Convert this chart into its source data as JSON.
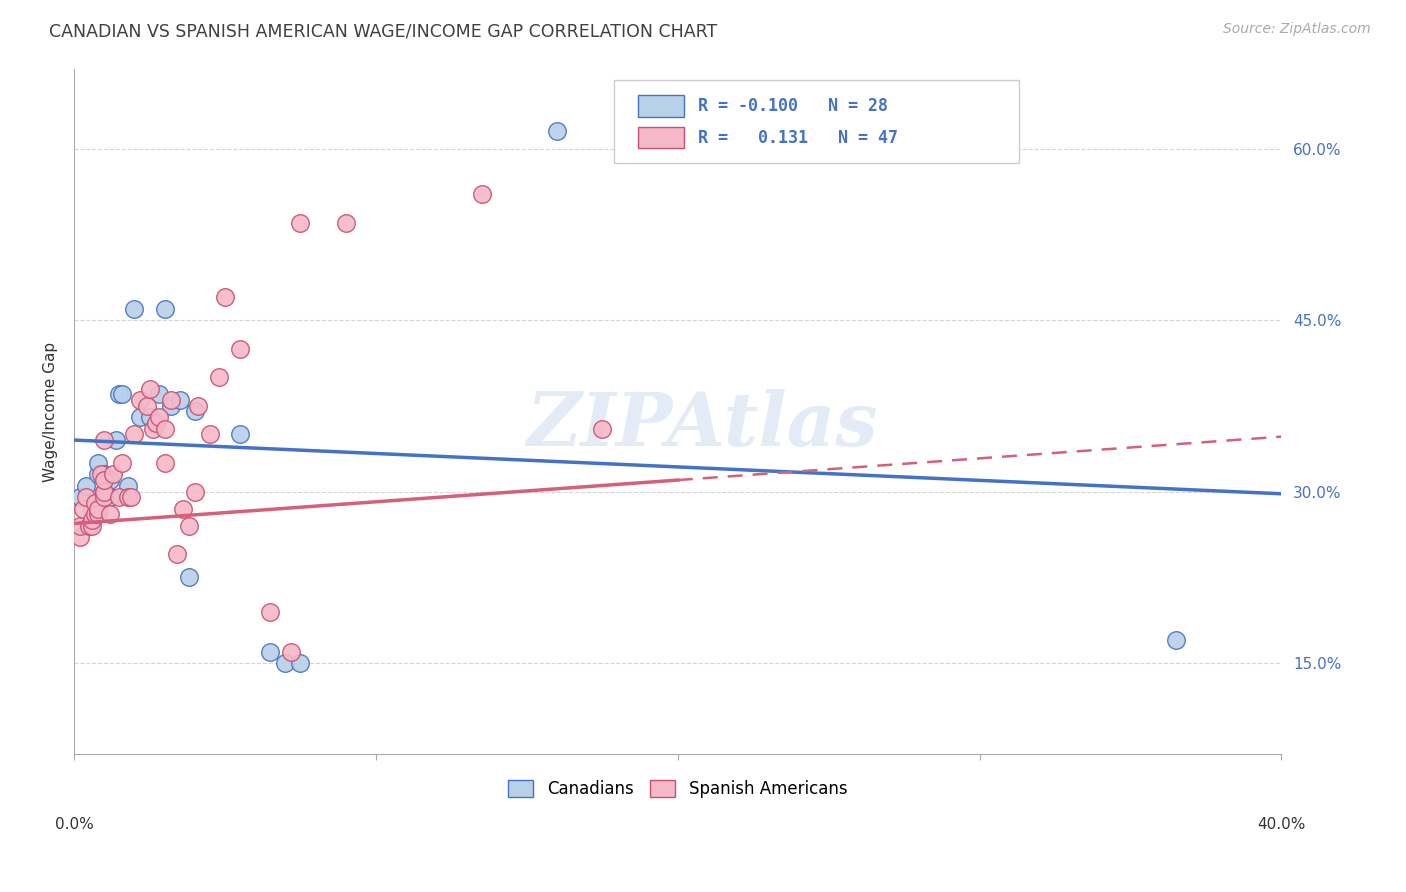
{
  "title": "CANADIAN VS SPANISH AMERICAN WAGE/INCOME GAP CORRELATION CHART",
  "source": "Source: ZipAtlas.com",
  "ylabel": "Wage/Income Gap",
  "xmin": 0.0,
  "xmax": 0.4,
  "ymin": 0.07,
  "ymax": 0.67,
  "canadians_x": [
    0.002,
    0.004,
    0.006,
    0.008,
    0.008,
    0.01,
    0.01,
    0.012,
    0.012,
    0.014,
    0.015,
    0.016,
    0.018,
    0.02,
    0.022,
    0.025,
    0.028,
    0.03,
    0.032,
    0.035,
    0.038,
    0.04,
    0.055,
    0.065,
    0.07,
    0.075,
    0.16,
    0.365
  ],
  "canadians_y": [
    0.295,
    0.305,
    0.285,
    0.315,
    0.325,
    0.3,
    0.315,
    0.295,
    0.31,
    0.345,
    0.385,
    0.385,
    0.305,
    0.46,
    0.365,
    0.365,
    0.385,
    0.46,
    0.375,
    0.38,
    0.225,
    0.37,
    0.35,
    0.16,
    0.15,
    0.15,
    0.615,
    0.17
  ],
  "spanish_x": [
    0.002,
    0.002,
    0.003,
    0.004,
    0.005,
    0.006,
    0.006,
    0.007,
    0.007,
    0.008,
    0.008,
    0.009,
    0.01,
    0.01,
    0.01,
    0.01,
    0.012,
    0.013,
    0.015,
    0.016,
    0.018,
    0.019,
    0.02,
    0.022,
    0.024,
    0.025,
    0.026,
    0.027,
    0.028,
    0.03,
    0.03,
    0.032,
    0.034,
    0.036,
    0.038,
    0.04,
    0.041,
    0.045,
    0.048,
    0.05,
    0.055,
    0.065,
    0.072,
    0.075,
    0.09,
    0.135,
    0.175
  ],
  "spanish_y": [
    0.26,
    0.27,
    0.285,
    0.295,
    0.27,
    0.27,
    0.275,
    0.28,
    0.29,
    0.28,
    0.285,
    0.315,
    0.295,
    0.3,
    0.31,
    0.345,
    0.28,
    0.315,
    0.295,
    0.325,
    0.295,
    0.295,
    0.35,
    0.38,
    0.375,
    0.39,
    0.355,
    0.36,
    0.365,
    0.325,
    0.355,
    0.38,
    0.245,
    0.285,
    0.27,
    0.3,
    0.375,
    0.35,
    0.4,
    0.47,
    0.425,
    0.195,
    0.16,
    0.535,
    0.535,
    0.56,
    0.355
  ],
  "canadian_color": "#b8d0e8",
  "spanish_color": "#f5b8c8",
  "canadian_line_color": "#4472c4",
  "spanish_line_color": "#d4607a",
  "canadian_edge_color": "#4472c4",
  "spanish_edge_color": "#c85070",
  "R_canadian": -0.1,
  "N_canadian": 28,
  "R_spanish": 0.131,
  "N_spanish": 47,
  "legend_label_canadian": "Canadians",
  "legend_label_spanish": "Spanish Americans",
  "watermark": "ZIPAtlas",
  "title_color": "#404040",
  "axis_label_color": "#4472c4",
  "background_color": "#ffffff",
  "grid_color": "#d0d0d0",
  "blue_line_y0": 0.345,
  "blue_line_y1": 0.298,
  "pink_line_y0": 0.272,
  "pink_line_y1": 0.348
}
